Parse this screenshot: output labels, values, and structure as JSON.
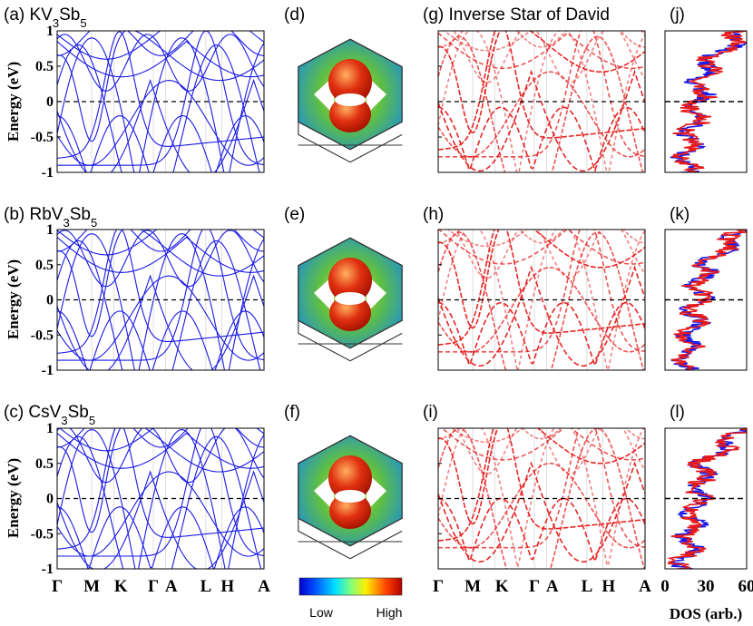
{
  "figure": {
    "ylabel": "Energy (eV)",
    "dos_xlabel": "DOS (arb.)",
    "colorbar": {
      "low": "Low",
      "high": "High"
    },
    "colors": {
      "pristine_bands": "#1a1ae6",
      "cdw_bands": "#e61a1a",
      "dos_blue": "#1a1ae6",
      "dos_red": "#e61a1a"
    }
  },
  "panels": {
    "a": {
      "label_prefix": "(a) KV",
      "sub1": "3",
      "mid": "Sb",
      "sub2": "5"
    },
    "b": {
      "label_prefix": "(b) RbV",
      "sub1": "3",
      "mid": "Sb",
      "sub2": "5"
    },
    "c": {
      "label_prefix": "(c) CsV",
      "sub1": "3",
      "mid": "Sb",
      "sub2": "5"
    },
    "d": "(d)",
    "e": "(e)",
    "f": "(f)",
    "g": "(g) Inverse Star of David",
    "h": "(h)",
    "i": "(i)",
    "j": "(j)",
    "k": "(k)",
    "l": "(l)"
  },
  "chart_data": [
    {
      "type": "line",
      "panel": "band-structure",
      "ylim": [
        -1,
        1
      ],
      "yticks": [
        "1",
        "0.5",
        "0",
        "-0.5",
        "-1"
      ],
      "kpath": [
        "Γ",
        "M",
        "K",
        "Γ",
        "A",
        "L",
        "H",
        "A"
      ],
      "fermi_level": 0
    },
    {
      "type": "line",
      "panel": "dos",
      "xlim": [
        0,
        60
      ],
      "xticks": [
        "0",
        "30",
        "60"
      ],
      "ylim": [
        -1,
        1
      ]
    }
  ]
}
